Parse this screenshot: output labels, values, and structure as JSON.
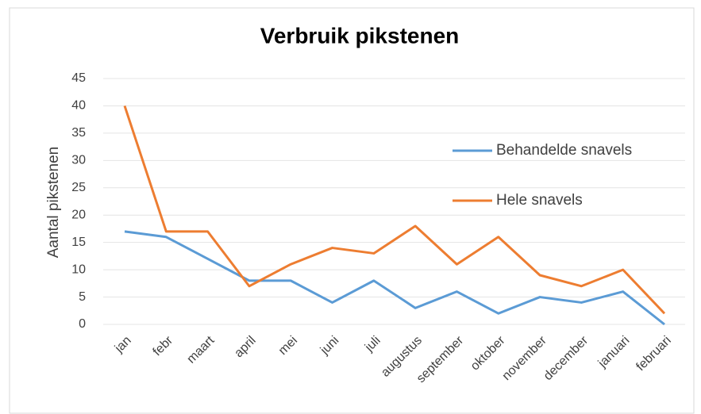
{
  "chart_data": {
    "type": "line",
    "title": "Verbruik pikstenen",
    "y_label": "Aantal pikstenen",
    "categories": [
      "jan",
      "febr",
      "maart",
      "april",
      "mei",
      "juni",
      "juli",
      "augustus",
      "september",
      "oktober",
      "november",
      "december",
      "januari",
      "februari"
    ],
    "series": [
      {
        "name": "Behandelde snavels",
        "color": "#5b9bd5",
        "values": [
          17,
          16,
          12,
          8,
          8,
          4,
          8,
          3,
          6,
          2,
          5,
          4,
          6,
          0
        ]
      },
      {
        "name": "Hele snavels",
        "color": "#ed7d31",
        "values": [
          40,
          17,
          17,
          7,
          11,
          14,
          13,
          18,
          11,
          16,
          9,
          7,
          10,
          2
        ]
      }
    ],
    "ylim": [
      0,
      45
    ],
    "yticks": [
      0,
      5,
      10,
      15,
      20,
      25,
      30,
      35,
      40,
      45
    ],
    "grid": true,
    "legend": "right"
  }
}
